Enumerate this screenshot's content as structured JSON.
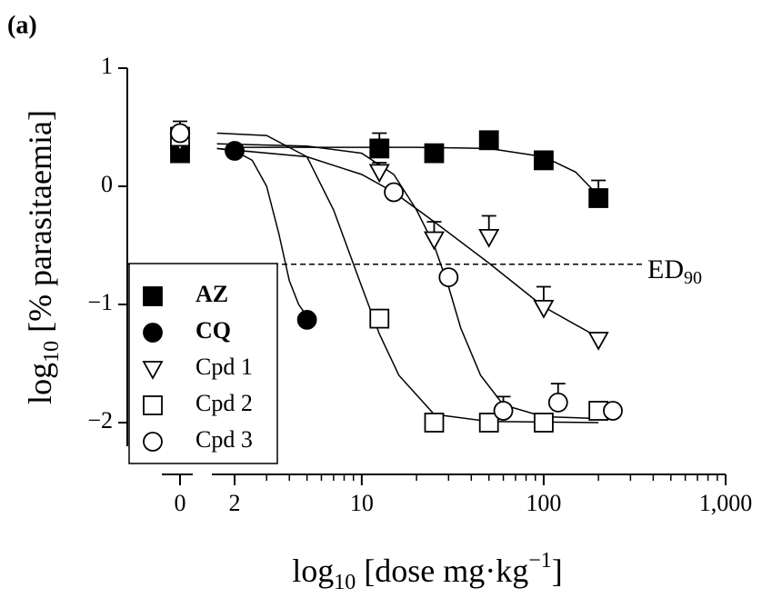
{
  "chart_data": {
    "type": "scatter",
    "panel_label": "(a)",
    "ylabel": {
      "text": "log",
      "sub": "10",
      "rest": " [% parasitaemia]"
    },
    "xlabel": {
      "text": "log",
      "sub": "10",
      "rest": " [dose mg·kg",
      "sup": "−1",
      "end": "]"
    },
    "log_x": true,
    "xlim": [
      1.5,
      1000
    ],
    "xticks": [
      0,
      2,
      10,
      100,
      {
        "value": 1000,
        "label": "1,000"
      }
    ],
    "xminor_ticks": [
      3,
      4,
      5,
      6,
      7,
      8,
      9,
      20,
      30,
      40,
      50,
      60,
      70,
      80,
      90,
      200,
      300,
      400,
      500,
      600,
      700,
      800,
      900
    ],
    "ylim": [
      -2.2,
      1
    ],
    "yticks": [
      {
        "value": -2,
        "label": "−2"
      },
      {
        "value": -1,
        "label": "−1"
      },
      0,
      1
    ],
    "reference_line": {
      "value": -0.66,
      "label": "ED",
      "label_sub": "90"
    },
    "series": [
      {
        "name": "AZ",
        "bold": true,
        "marker": "square",
        "filled": true,
        "color": "#000000",
        "x": [
          0,
          12.5,
          25,
          50,
          100,
          200
        ],
        "values": [
          0.28,
          0.32,
          0.28,
          0.39,
          0.22,
          -0.1
        ],
        "errors": [
          null,
          0.13,
          null,
          null,
          null,
          0.15
        ],
        "fit": {
          "x": [
            2,
            5,
            10,
            20,
            50,
            100,
            150,
            200
          ],
          "values": [
            0.33,
            0.33,
            0.33,
            0.33,
            0.32,
            0.25,
            0.12,
            -0.08
          ]
        }
      },
      {
        "name": "CQ",
        "bold": true,
        "marker": "circle",
        "filled": true,
        "color": "#000000",
        "x": [
          0,
          2,
          5
        ],
        "values": [
          0.32,
          0.3,
          -1.13
        ],
        "errors": [
          null,
          null,
          null
        ],
        "fit": {
          "x": [
            1.6,
            2,
            2.5,
            3,
            3.5,
            4,
            4.5,
            5
          ],
          "values": [
            0.32,
            0.3,
            0.22,
            0.0,
            -0.4,
            -0.8,
            -1.0,
            -1.1
          ]
        }
      },
      {
        "name": "Cpd 1",
        "bold": false,
        "marker": "triangle-down",
        "filled": false,
        "color": "#000000",
        "x": [
          0,
          12.5,
          25,
          50,
          100,
          200
        ],
        "values": [
          0.38,
          0.12,
          -0.45,
          -0.43,
          -1.03,
          -1.3
        ],
        "errors": [
          null,
          0.08,
          0.15,
          0.18,
          0.18,
          null
        ],
        "fit": {
          "x": [
            1.6,
            5,
            10,
            15,
            25,
            50,
            100,
            200
          ],
          "values": [
            0.32,
            0.25,
            0.1,
            -0.05,
            -0.3,
            -0.65,
            -1.02,
            -1.28
          ]
        }
      },
      {
        "name": "Cpd 2",
        "bold": false,
        "marker": "square",
        "filled": false,
        "color": "#000000",
        "x": [
          0,
          12.5,
          25,
          50,
          100,
          200
        ],
        "values": [
          0.42,
          -1.12,
          -2.0,
          -2.0,
          -2.0,
          -1.9
        ],
        "errors": [
          null,
          null,
          null,
          null,
          null,
          null
        ],
        "fit": {
          "x": [
            1.6,
            3,
            5,
            7,
            10,
            12.5,
            16,
            25,
            50,
            200
          ],
          "values": [
            0.45,
            0.43,
            0.25,
            -0.2,
            -0.85,
            -1.25,
            -1.6,
            -1.93,
            -1.99,
            -2.0
          ]
        }
      },
      {
        "name": "Cpd 3",
        "bold": false,
        "marker": "circle",
        "filled": false,
        "color": "#000000",
        "x": [
          0,
          15,
          30,
          60,
          120,
          240
        ],
        "values": [
          0.45,
          -0.05,
          -0.77,
          -1.9,
          -1.83,
          -1.9
        ],
        "errors": [
          0.1,
          null,
          null,
          0.12,
          0.16,
          null
        ],
        "fit": {
          "x": [
            1.6,
            5,
            10,
            15,
            20,
            25,
            30,
            35,
            45,
            60,
            100,
            240
          ],
          "values": [
            0.36,
            0.34,
            0.28,
            0.1,
            -0.2,
            -0.5,
            -0.85,
            -1.2,
            -1.6,
            -1.85,
            -1.95,
            -1.97
          ]
        }
      }
    ]
  }
}
